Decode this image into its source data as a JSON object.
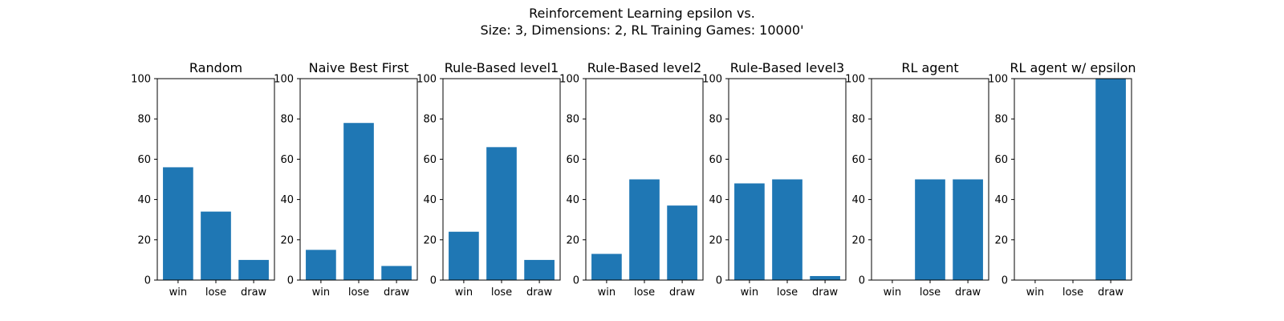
{
  "figure": {
    "title_line1": "Reinforcement Learning epsilon vs.",
    "title_line2": "Size: 3, Dimensions: 2, RL Training Games: 10000'",
    "bar_color": "#1f77b4"
  },
  "chart_data": [
    {
      "type": "bar",
      "title": "Random",
      "categories": [
        "win",
        "lose",
        "draw"
      ],
      "values": [
        56,
        34,
        10
      ],
      "ylim": [
        0,
        100
      ],
      "yticks": [
        0,
        20,
        40,
        60,
        80,
        100
      ]
    },
    {
      "type": "bar",
      "title": "Naive Best First",
      "categories": [
        "win",
        "lose",
        "draw"
      ],
      "values": [
        15,
        78,
        7
      ],
      "ylim": [
        0,
        100
      ],
      "yticks": [
        0,
        20,
        40,
        60,
        80,
        100
      ]
    },
    {
      "type": "bar",
      "title": "Rule-Based level1",
      "categories": [
        "win",
        "lose",
        "draw"
      ],
      "values": [
        24,
        66,
        10
      ],
      "ylim": [
        0,
        100
      ],
      "yticks": [
        0,
        20,
        40,
        60,
        80,
        100
      ]
    },
    {
      "type": "bar",
      "title": "Rule-Based level2",
      "categories": [
        "win",
        "lose",
        "draw"
      ],
      "values": [
        13,
        50,
        37
      ],
      "ylim": [
        0,
        100
      ],
      "yticks": [
        0,
        20,
        40,
        60,
        80,
        100
      ]
    },
    {
      "type": "bar",
      "title": "Rule-Based level3",
      "categories": [
        "win",
        "lose",
        "draw"
      ],
      "values": [
        48,
        50,
        2
      ],
      "ylim": [
        0,
        100
      ],
      "yticks": [
        0,
        20,
        40,
        60,
        80,
        100
      ]
    },
    {
      "type": "bar",
      "title": "RL agent",
      "categories": [
        "win",
        "lose",
        "draw"
      ],
      "values": [
        0,
        50,
        50
      ],
      "ylim": [
        0,
        100
      ],
      "yticks": [
        0,
        20,
        40,
        60,
        80,
        100
      ]
    },
    {
      "type": "bar",
      "title": "RL agent w/ epsilon",
      "categories": [
        "win",
        "lose",
        "draw"
      ],
      "values": [
        0,
        0,
        100
      ],
      "ylim": [
        0,
        100
      ],
      "yticks": [
        0,
        20,
        40,
        60,
        80,
        100
      ]
    }
  ]
}
